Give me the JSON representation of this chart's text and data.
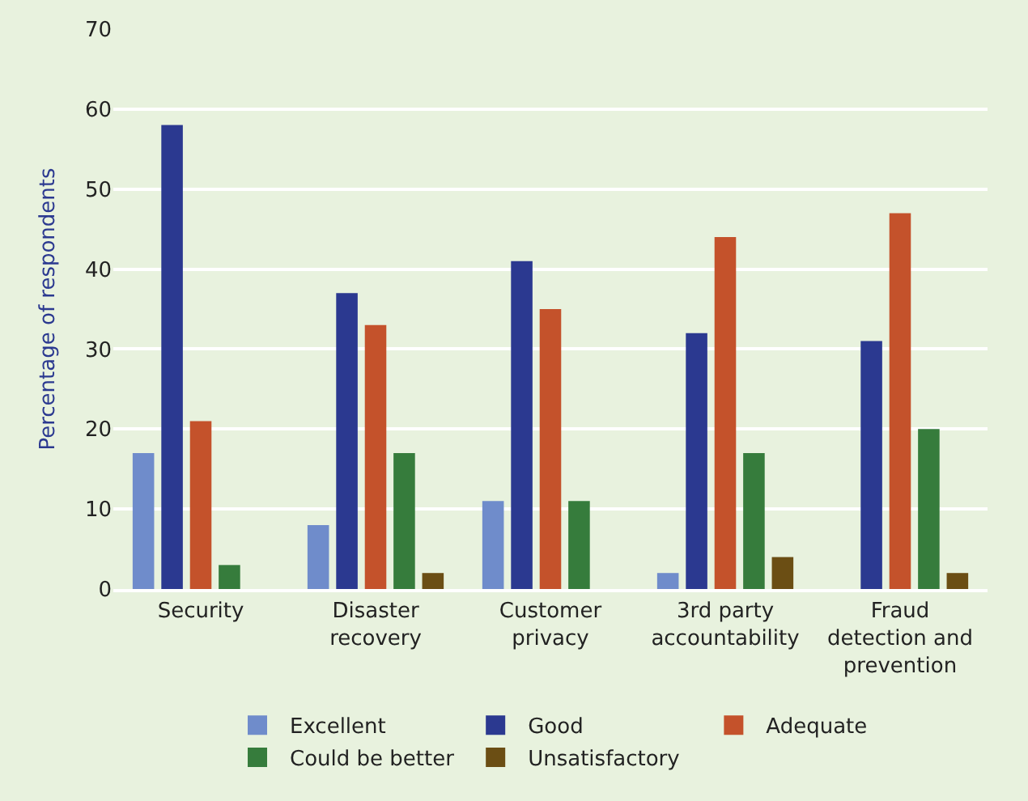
{
  "chart_data": {
    "type": "bar",
    "ylabel": "Percentage of respondents",
    "categories": [
      "Security",
      "Disaster recovery",
      "Customer privacy",
      "3rd party accountability",
      "Fraud detection and prevention"
    ],
    "series": [
      {
        "name": "Excellent",
        "color": "#6f8ccb",
        "values": [
          17,
          8,
          11,
          2,
          0
        ]
      },
      {
        "name": "Good",
        "color": "#2b3990",
        "values": [
          58,
          37,
          41,
          32,
          31
        ]
      },
      {
        "name": "Adequate",
        "color": "#c4522b",
        "values": [
          21,
          33,
          35,
          44,
          47
        ]
      },
      {
        "name": "Could be better",
        "color": "#367c3c",
        "values": [
          3,
          17,
          11,
          17,
          20
        ]
      },
      {
        "name": "Unsatisfactory",
        "color": "#6b4e14",
        "values": [
          0,
          2,
          0,
          4,
          2
        ]
      }
    ],
    "ylim": [
      0,
      70
    ],
    "yticks": [
      0,
      10,
      20,
      30,
      40,
      50,
      60,
      70
    ],
    "grid": "y",
    "legend": "bottom"
  }
}
